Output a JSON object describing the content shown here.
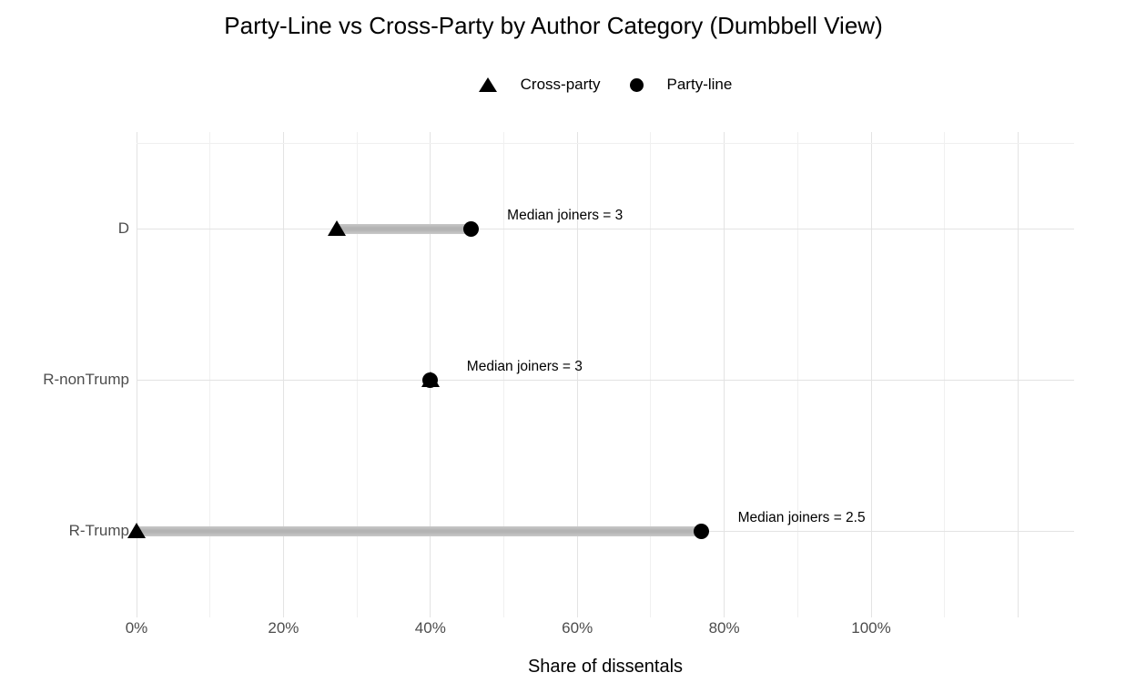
{
  "title": "Party-Line vs Cross-Party by Author Category (Dumbbell View)",
  "legend": {
    "items": [
      {
        "symbol": "triangle-icon",
        "label": "Cross-party"
      },
      {
        "symbol": "circle-icon",
        "label": "Party-line"
      }
    ]
  },
  "chart_data": {
    "type": "dumbbell",
    "orientation": "horizontal",
    "title": "Party-Line vs Cross-Party by Author Category (Dumbbell View)",
    "xlabel": "Share of dissentals",
    "ylabel": "",
    "categories": [
      "D",
      "R-nonTrump",
      "R-Trump"
    ],
    "series": [
      {
        "name": "Cross-party",
        "marker": "triangle",
        "values_pct": [
          27.3,
          40.0,
          0.0
        ]
      },
      {
        "name": "Party-line",
        "marker": "circle",
        "values_pct": [
          45.5,
          40.0,
          76.9
        ]
      }
    ],
    "annotations": [
      "Median joiners = 3",
      "Median joiners = 3",
      "Median joiners = 2.5"
    ],
    "median_joiners": [
      3,
      3,
      2.5
    ],
    "x_ticks": [
      {
        "value": 0,
        "label": "0%"
      },
      {
        "value": 20,
        "label": "20%"
      },
      {
        "value": 40,
        "label": "40%"
      },
      {
        "value": 60,
        "label": "60%"
      },
      {
        "value": 80,
        "label": "80%"
      },
      {
        "value": 100,
        "label": "100%"
      }
    ],
    "x_minor_step": 10,
    "xlim": [
      0,
      127.6
    ],
    "grid": true,
    "legend_position": "top-center",
    "colors": {
      "marker": "#000000",
      "segment": "#b3b3b3",
      "segment_edge": "#c9c9c9",
      "grid_major": "#e3e3e3",
      "grid_minor": "#f0f0f0",
      "axis_text": "#4d4d4d",
      "text": "#000000",
      "background": "#ffffff"
    }
  }
}
